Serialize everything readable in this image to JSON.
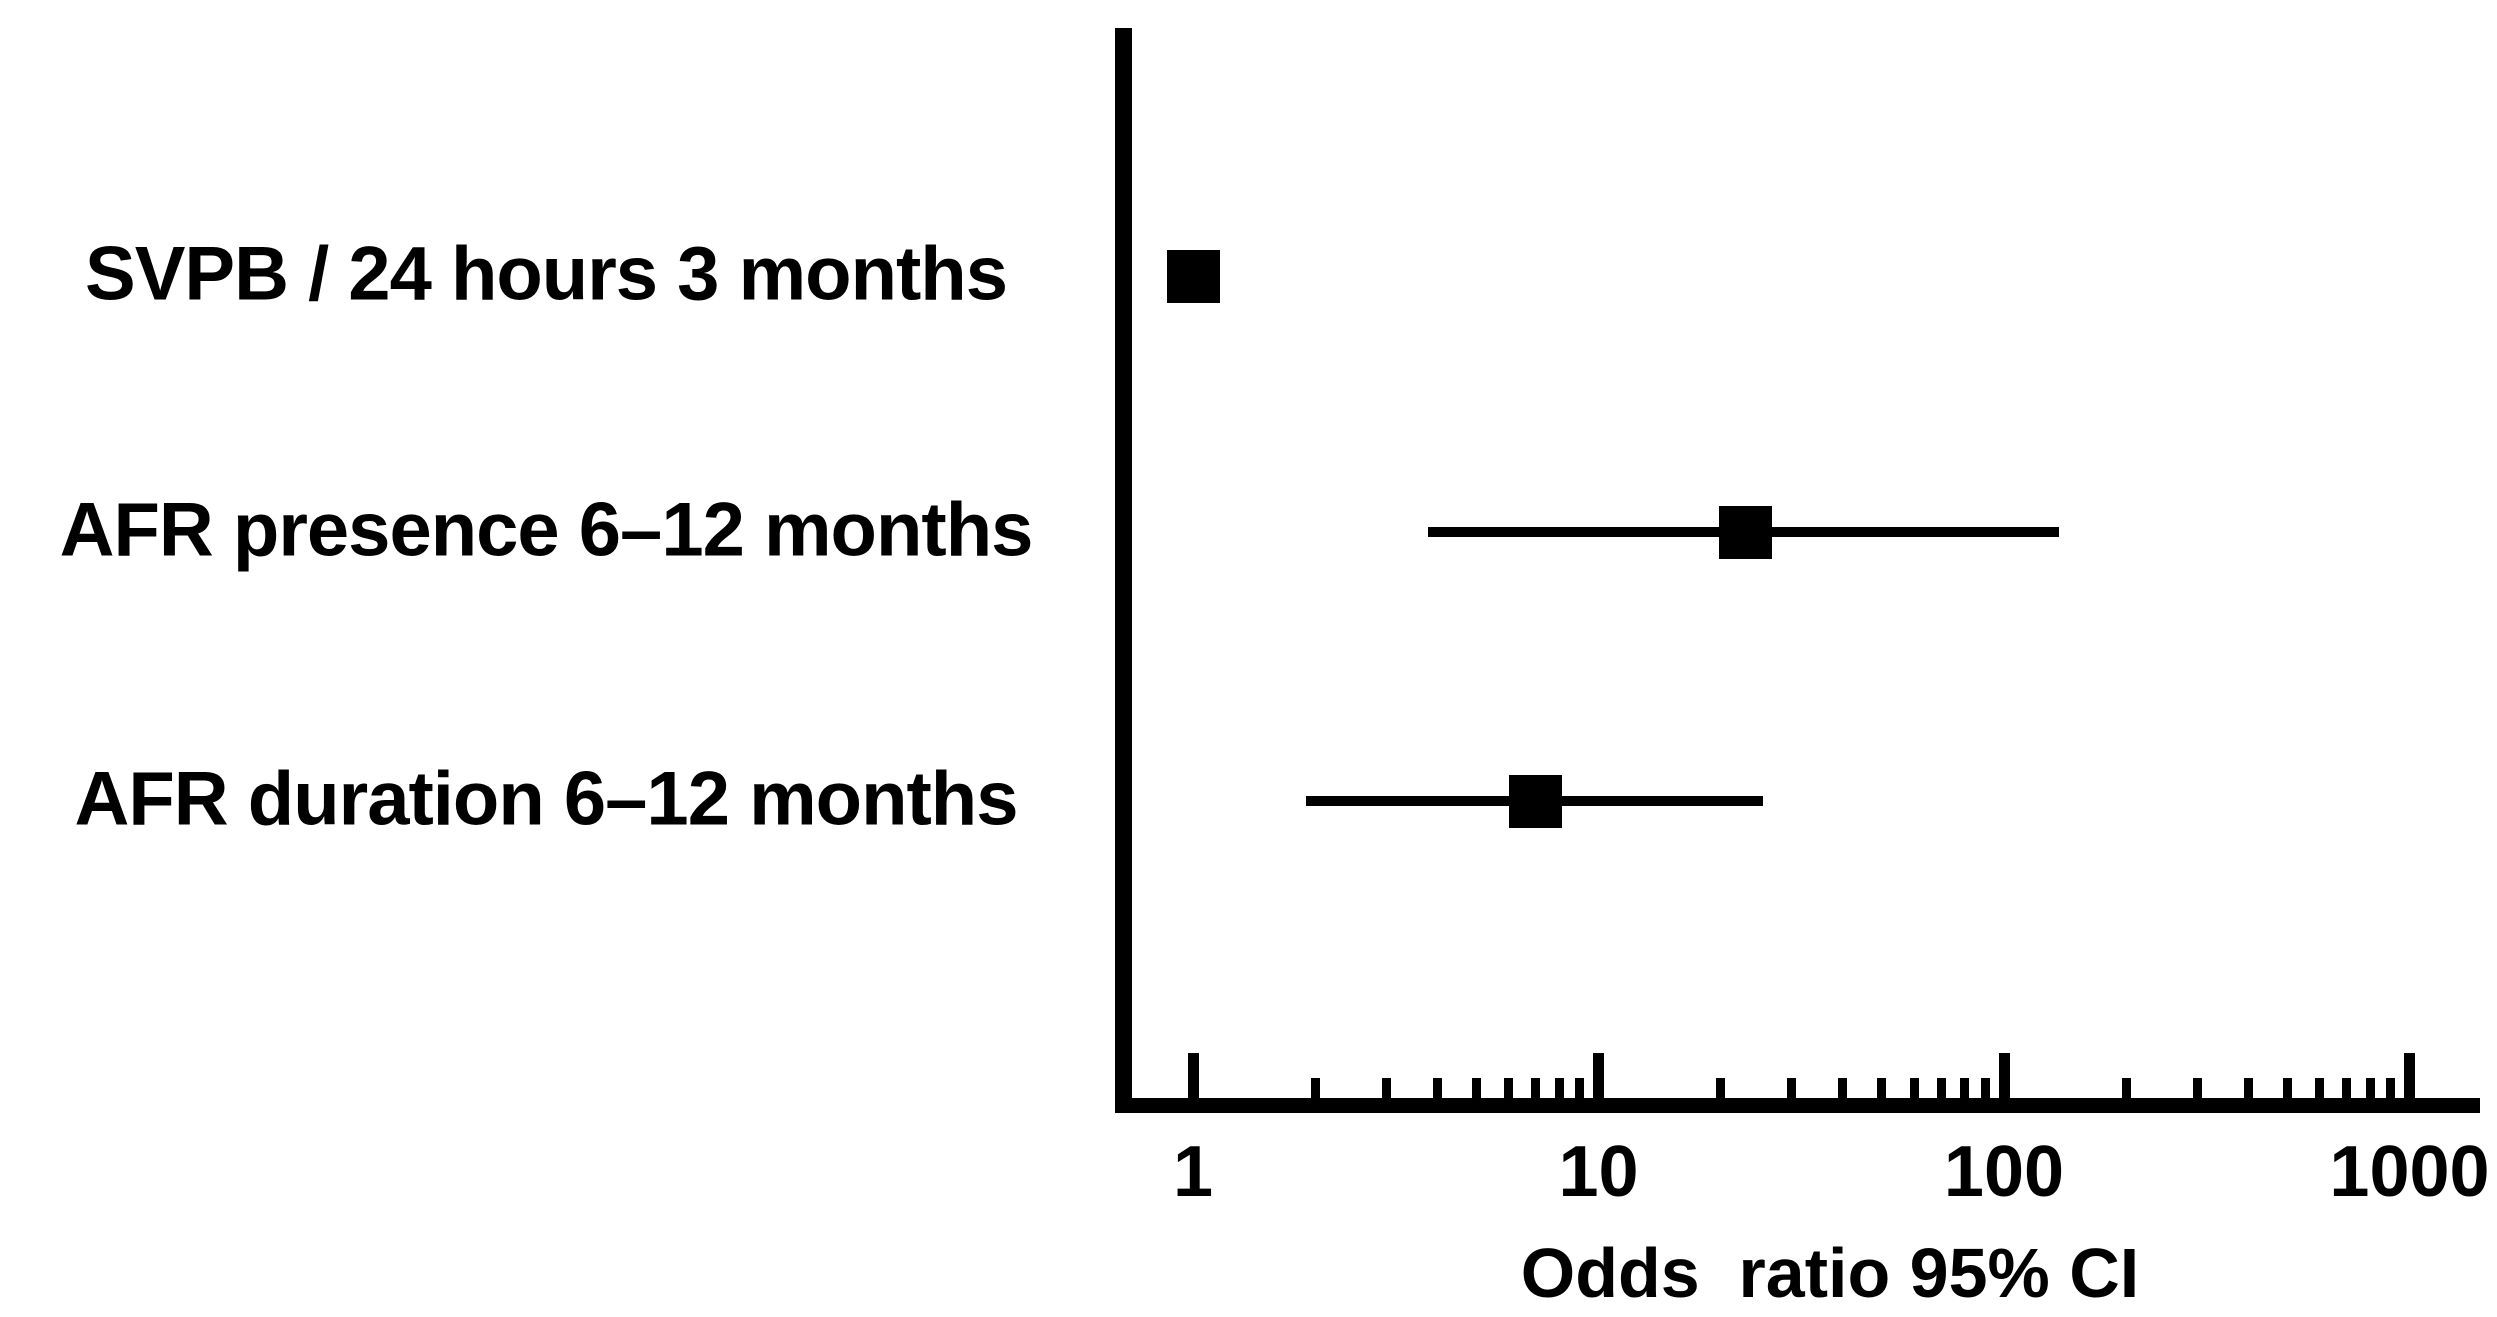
{
  "figure": {
    "background": "#ffffff",
    "foreground": "#000000"
  },
  "chart_data": {
    "type": "scatter",
    "plot_style": "forest-plot",
    "title": "",
    "xlabel": "Odds  ratio 95% CI",
    "ylabel": "",
    "x_scale": "log10",
    "xlim": [
      1,
      1000
    ],
    "x_major_ticks": [
      1,
      10,
      100,
      1000
    ],
    "x_tick_labels": [
      "1",
      "10",
      "100",
      "1000"
    ],
    "x_minor_ticks_per_decade": [
      2,
      3,
      4,
      5,
      6,
      7,
      8,
      9
    ],
    "grid": false,
    "legend": false,
    "marker_style": "filled-black-square",
    "rows": [
      {
        "label": "SVPB / 24 hours 3 months",
        "or": 1.0,
        "ci_low": null,
        "ci_high": null,
        "ci_line_visible": false
      },
      {
        "label": "AFR presence 6–12 months",
        "or": 23.0,
        "ci_low": 3.8,
        "ci_high": 137.0,
        "ci_line_visible": true
      },
      {
        "label": "AFR duration 6–12 months",
        "or": 7.0,
        "ci_low": 1.9,
        "ci_high": 25.5,
        "ci_line_visible": true
      }
    ],
    "colors": {
      "marker": "#000000",
      "line": "#000000",
      "axis": "#000000",
      "background": "#ffffff"
    }
  }
}
